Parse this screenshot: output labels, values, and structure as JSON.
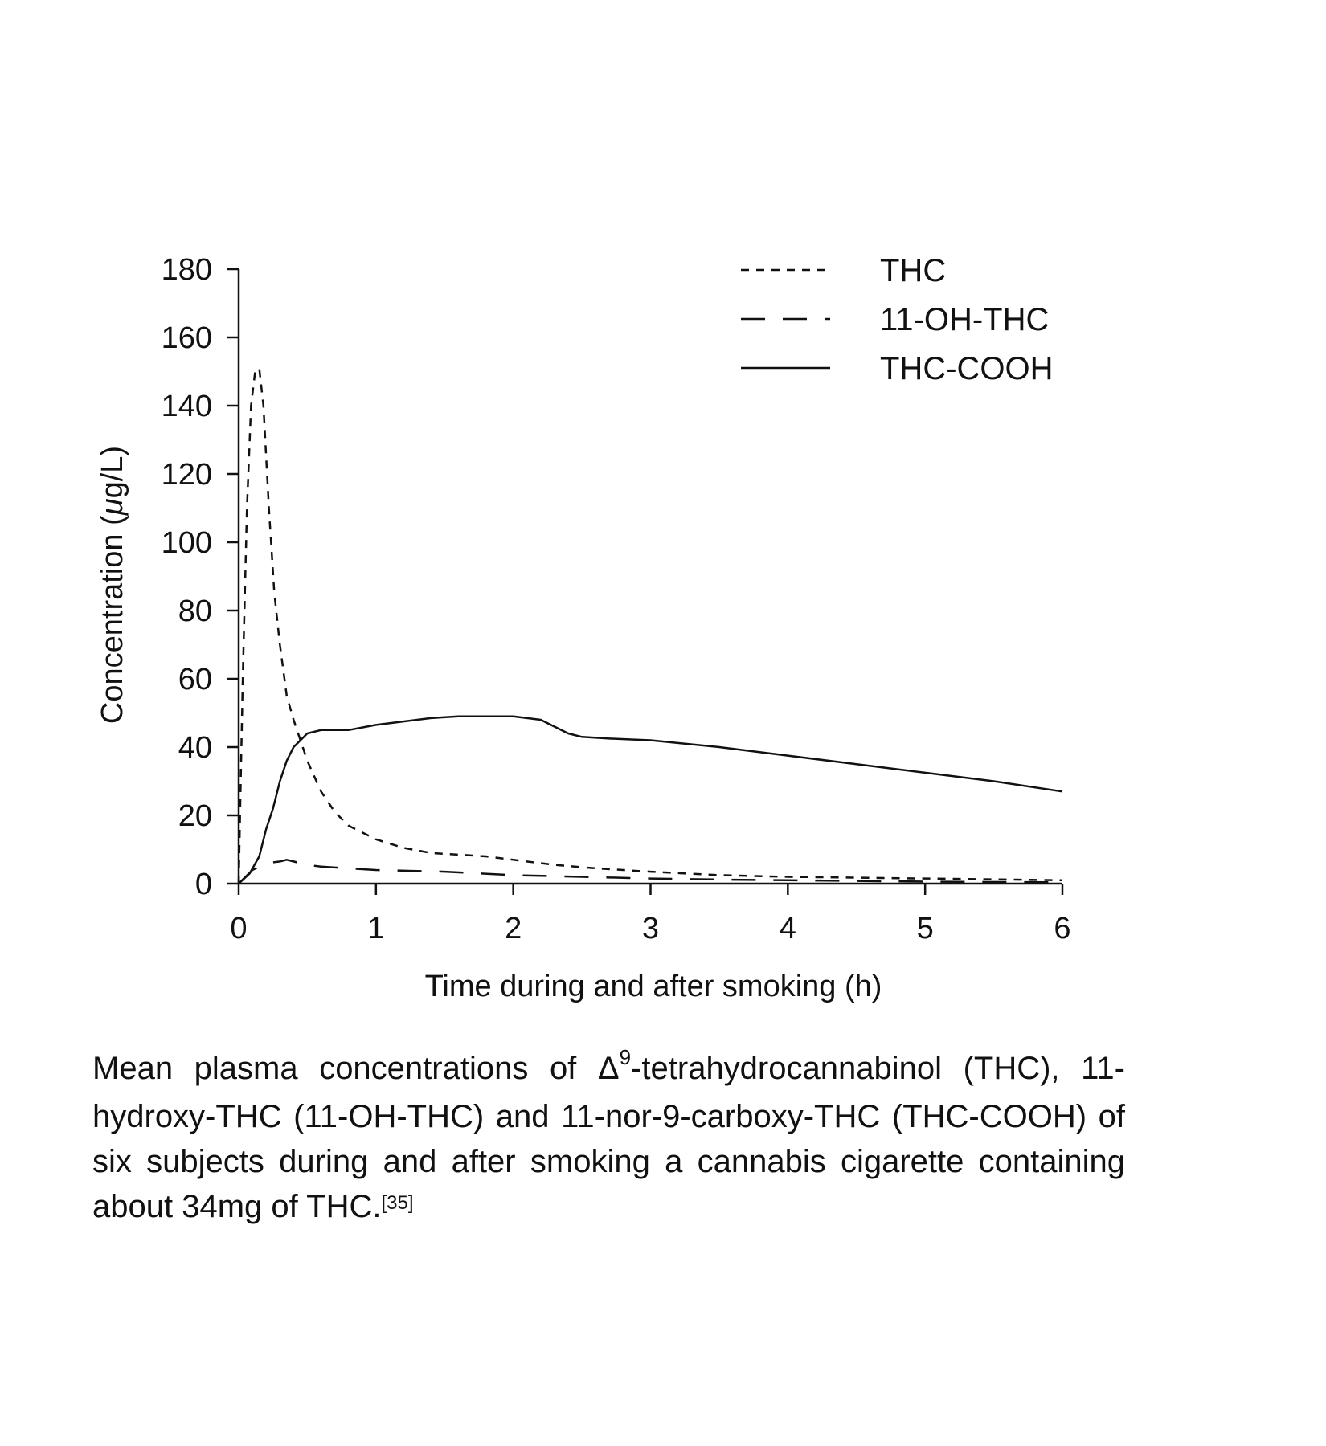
{
  "chart_data": {
    "type": "line",
    "xlabel": "Time during and after smoking (h)",
    "ylabel_pre": "Concentration (",
    "ylabel_mu": "μ",
    "ylabel_post": "g/L)",
    "xlim": [
      0,
      6
    ],
    "ylim": [
      0,
      180
    ],
    "x_ticks": [
      "0",
      "1",
      "2",
      "3",
      "4",
      "5",
      "6"
    ],
    "y_ticks": [
      "0",
      "20",
      "40",
      "60",
      "80",
      "100",
      "120",
      "140",
      "160",
      "180"
    ],
    "grid": false,
    "legend_position": "top-right",
    "series": [
      {
        "name": "THC",
        "style": "short-dash",
        "x": [
          0,
          0.03,
          0.06,
          0.09,
          0.12,
          0.15,
          0.18,
          0.22,
          0.26,
          0.3,
          0.35,
          0.4,
          0.5,
          0.6,
          0.7,
          0.8,
          1.0,
          1.2,
          1.4,
          1.6,
          1.8,
          2.0,
          2.3,
          2.6,
          3.0,
          3.5,
          4.0,
          5.0,
          6.0
        ],
        "y": [
          0,
          60,
          110,
          140,
          150,
          151,
          140,
          110,
          85,
          70,
          55,
          48,
          36,
          27,
          21,
          17,
          13,
          10.5,
          9,
          8.5,
          8,
          7,
          5.5,
          4.5,
          3.5,
          2.5,
          2,
          1.5,
          1
        ]
      },
      {
        "name": "11-OH-THC",
        "style": "long-dash",
        "x": [
          0,
          0.1,
          0.2,
          0.3,
          0.35,
          0.4,
          0.5,
          0.6,
          0.8,
          1.0,
          1.5,
          2.0,
          2.5,
          3.0,
          3.5,
          4.0,
          5.0,
          6.0
        ],
        "y": [
          0,
          4,
          6,
          6.5,
          7,
          6.5,
          5.5,
          5,
          4.5,
          4,
          3.5,
          2.5,
          2,
          1.5,
          1.2,
          1,
          0.6,
          0.4
        ]
      },
      {
        "name": "THC-COOH",
        "style": "solid",
        "x": [
          0,
          0.08,
          0.15,
          0.2,
          0.25,
          0.3,
          0.35,
          0.4,
          0.5,
          0.6,
          0.7,
          0.8,
          1.0,
          1.2,
          1.4,
          1.6,
          1.8,
          2.0,
          2.2,
          2.3,
          2.4,
          2.5,
          2.7,
          3.0,
          3.5,
          4.0,
          4.5,
          5.0,
          5.5,
          6.0
        ],
        "y": [
          0,
          3,
          8,
          16,
          22,
          30,
          36,
          40,
          44,
          45,
          45,
          45,
          46.5,
          47.5,
          48.5,
          49,
          49,
          49,
          48,
          46,
          44,
          43,
          42.5,
          42,
          40,
          37.5,
          35,
          32.5,
          30,
          27
        ]
      }
    ]
  },
  "caption": {
    "line1_pre": "Mean plasma concentrations of Δ",
    "line1_sup": "9",
    "line1_post": "-tetrahydrocannabinol (THC), 11-hydroxy-THC (11-OH-THC) and 11-nor-9-carboxy-THC (THC-COOH) of six subjects during and after smoking a cannabis cigarette containing about 34mg of THC.",
    "ref": "[35]"
  }
}
